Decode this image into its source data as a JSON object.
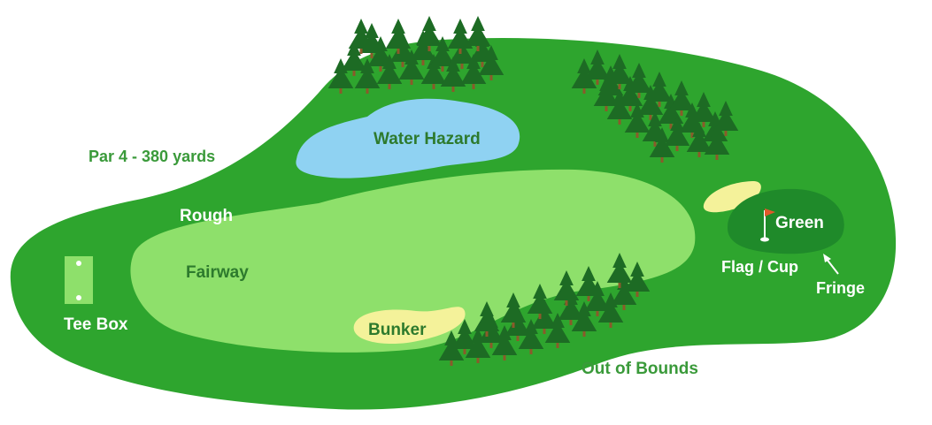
{
  "labels": {
    "par": "Par 4 - 380 yards",
    "rough": "Rough",
    "fairway": "Fairway",
    "tee_box": "Tee Box",
    "water_hazard": "Water Hazard",
    "bunker": "Bunker",
    "green": "Green",
    "flag_cup": "Flag / Cup",
    "fringe": "Fringe",
    "out_of_bounds": "Out of Bounds"
  },
  "colors": {
    "rough": "#2ea52e",
    "fairway": "#8ee06b",
    "green": "#1f8a2a",
    "water": "#8fd2f2",
    "sand": "#f4f29a",
    "tree": "#1d6b24",
    "trunk": "#8a5a2b",
    "flag": "#e0592b"
  }
}
